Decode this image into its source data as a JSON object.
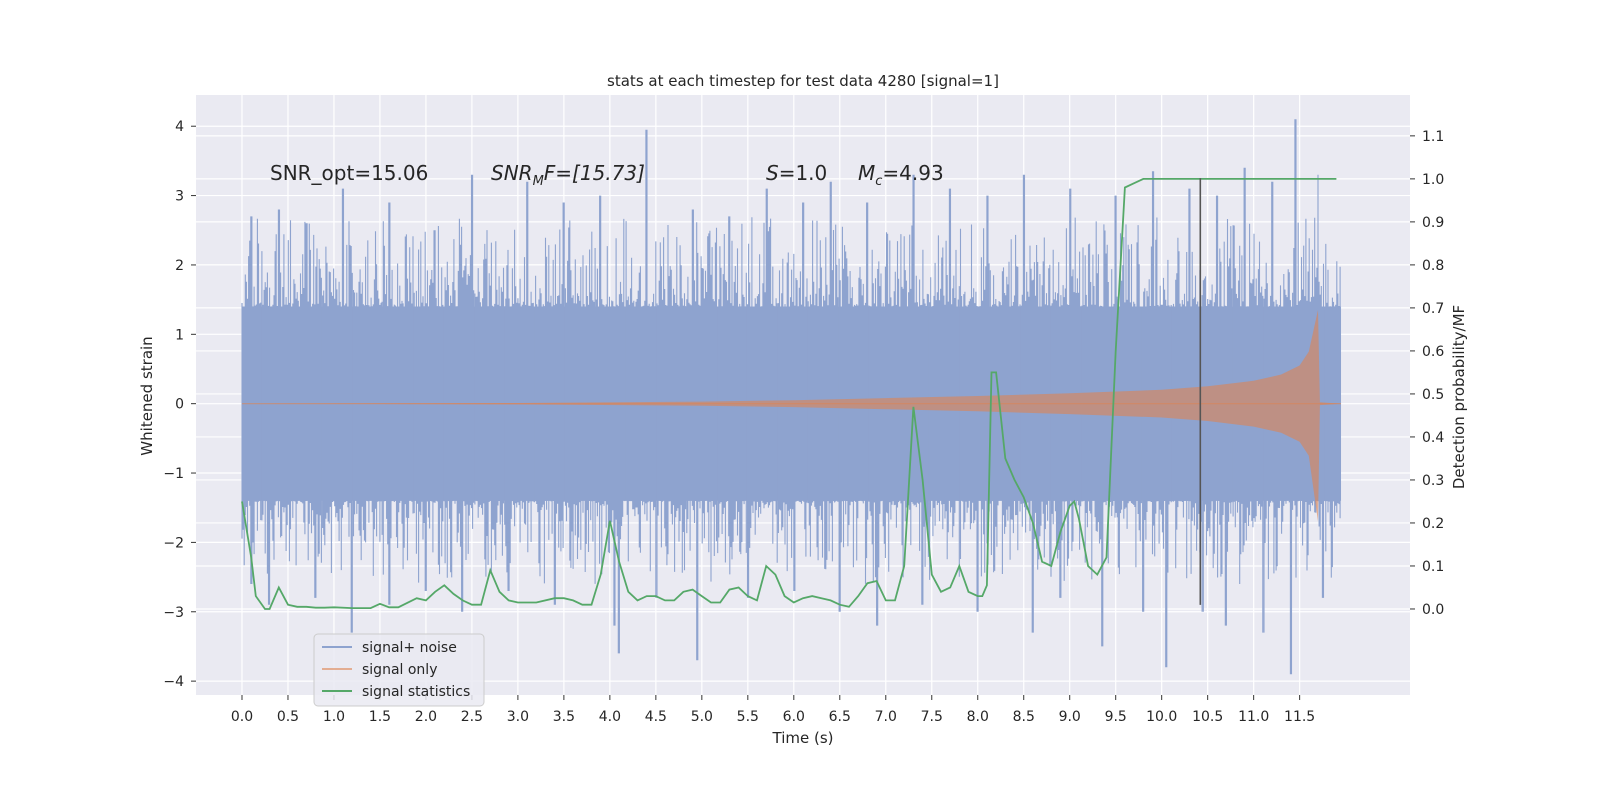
{
  "chart_data": {
    "type": "line",
    "title": "stats at each timestep for test data 4280 [signal=1]",
    "xlabel": "Time (s)",
    "ylabel_left": "Whitened strain",
    "ylabel_right": "Detection probability/MF",
    "xlim": [
      -0.5,
      12.7
    ],
    "ylim_left": [
      -4.2,
      4.45
    ],
    "ylim_right": [
      -0.2,
      1.195
    ],
    "xticks": [
      "0.0",
      "0.5",
      "1.0",
      "1.5",
      "2.0",
      "2.5",
      "3.0",
      "3.5",
      "4.0",
      "4.5",
      "5.0",
      "5.5",
      "6.0",
      "6.5",
      "7.0",
      "7.5",
      "8.0",
      "8.5",
      "9.0",
      "9.5",
      "10.0",
      "10.5",
      "11.0",
      "11.5"
    ],
    "yticks_left": [
      "4",
      "3",
      "2",
      "1",
      "0",
      "−1",
      "−2",
      "−3",
      "−4"
    ],
    "yticks_right": [
      "1.1",
      "1.0",
      "0.9",
      "0.8",
      "0.7",
      "0.6",
      "0.5",
      "0.4",
      "0.3",
      "0.2",
      "0.1",
      "0.0"
    ],
    "annotations": {
      "snr_opt": "SNR_opt=15.06",
      "snr_mf_main": "SNR",
      "snr_mf_sub": "M",
      "snr_mf_rest": "F=[15.73]",
      "s_main": "S",
      "s_rest": "=1.0",
      "mc_main": "M",
      "mc_sub": "c",
      "mc_rest": "=4.93"
    },
    "legend": {
      "position": "lower-left",
      "entries": [
        "signal+ noise",
        "signal only",
        "signal statistics"
      ]
    },
    "colors": {
      "noise": "#8ea3cf",
      "signal": "#dd8452",
      "stats": "#55a868",
      "plot_bg": "#eaeaf2",
      "grid": "#ffffff",
      "vline": "#555555"
    },
    "series": [
      {
        "name": "signal+ noise",
        "note": "dense noisy strain envelope; typical range about ±1.4, spikes reaching 4.1 and -3.8",
        "upper_baseline": 1.4,
        "lower_baseline": -1.4,
        "spikes_top": [
          [
            0.1,
            2.7
          ],
          [
            0.4,
            2.8
          ],
          [
            0.7,
            2.6
          ],
          [
            1.1,
            3.1
          ],
          [
            1.6,
            2.9
          ],
          [
            2.1,
            2.5
          ],
          [
            2.5,
            3.3
          ],
          [
            3.1,
            3.2
          ],
          [
            3.5,
            2.9
          ],
          [
            3.9,
            3.0
          ],
          [
            4.4,
            3.95
          ],
          [
            4.9,
            2.8
          ],
          [
            5.3,
            2.7
          ],
          [
            5.7,
            3.1
          ],
          [
            6.1,
            2.9
          ],
          [
            6.4,
            3.2
          ],
          [
            6.8,
            2.9
          ],
          [
            7.3,
            3.3
          ],
          [
            7.7,
            3.1
          ],
          [
            8.1,
            3.0
          ],
          [
            8.5,
            3.3
          ],
          [
            9.0,
            3.1
          ],
          [
            9.5,
            3.0
          ],
          [
            9.9,
            3.35
          ],
          [
            10.3,
            3.1
          ],
          [
            10.6,
            3.0
          ],
          [
            10.9,
            3.4
          ],
          [
            11.2,
            3.2
          ],
          [
            11.45,
            4.1
          ],
          [
            11.7,
            3.3
          ]
        ],
        "spikes_bottom": [
          [
            0.1,
            -2.6
          ],
          [
            0.3,
            -2.9
          ],
          [
            0.8,
            -2.8
          ],
          [
            1.2,
            -3.3
          ],
          [
            1.6,
            -2.9
          ],
          [
            2.0,
            -2.7
          ],
          [
            2.4,
            -3.0
          ],
          [
            2.9,
            -2.7
          ],
          [
            3.4,
            -2.9
          ],
          [
            4.05,
            -3.2
          ],
          [
            4.1,
            -3.6
          ],
          [
            4.5,
            -2.8
          ],
          [
            4.95,
            -3.7
          ],
          [
            5.5,
            -2.8
          ],
          [
            6.0,
            -2.7
          ],
          [
            6.5,
            -3.0
          ],
          [
            6.9,
            -3.2
          ],
          [
            7.4,
            -2.9
          ],
          [
            8.0,
            -3.0
          ],
          [
            8.6,
            -3.3
          ],
          [
            8.9,
            -2.8
          ],
          [
            9.35,
            -3.5
          ],
          [
            9.8,
            -3.0
          ],
          [
            10.05,
            -3.8
          ],
          [
            10.45,
            -3.0
          ],
          [
            10.7,
            -3.2
          ],
          [
            11.1,
            -3.3
          ],
          [
            11.4,
            -3.9
          ],
          [
            11.75,
            -2.8
          ]
        ]
      },
      {
        "name": "signal only",
        "note": "chirp envelope growing until merger at ~11.7 s",
        "envelope": [
          [
            0.0,
            0.0
          ],
          [
            3.0,
            0.01
          ],
          [
            5.0,
            0.03
          ],
          [
            6.0,
            0.05
          ],
          [
            7.0,
            0.08
          ],
          [
            8.0,
            0.11
          ],
          [
            9.0,
            0.15
          ],
          [
            10.0,
            0.2
          ],
          [
            10.5,
            0.25
          ],
          [
            11.0,
            0.33
          ],
          [
            11.3,
            0.42
          ],
          [
            11.5,
            0.55
          ],
          [
            11.6,
            0.75
          ],
          [
            11.7,
            1.35
          ],
          [
            11.72,
            0.02
          ],
          [
            11.95,
            0.0
          ]
        ],
        "lower_peak": -1.7
      },
      {
        "name": "signal statistics",
        "axis": "right",
        "x": [
          0.0,
          0.1,
          0.15,
          0.25,
          0.3,
          0.4,
          0.5,
          0.6,
          0.7,
          0.8,
          0.9,
          1.0,
          1.2,
          1.4,
          1.5,
          1.6,
          1.7,
          1.9,
          2.0,
          2.1,
          2.2,
          2.3,
          2.4,
          2.5,
          2.6,
          2.7,
          2.8,
          2.9,
          3.0,
          3.2,
          3.4,
          3.5,
          3.6,
          3.7,
          3.8,
          3.9,
          4.0,
          4.1,
          4.2,
          4.3,
          4.4,
          4.5,
          4.6,
          4.7,
          4.8,
          4.9,
          5.0,
          5.1,
          5.2,
          5.3,
          5.4,
          5.5,
          5.6,
          5.7,
          5.8,
          5.9,
          6.0,
          6.1,
          6.2,
          6.3,
          6.4,
          6.5,
          6.6,
          6.7,
          6.8,
          6.9,
          7.0,
          7.1,
          7.2,
          7.3,
          7.4,
          7.5,
          7.6,
          7.7,
          7.8,
          7.9,
          8.0,
          8.05,
          8.1,
          8.15,
          8.2,
          8.3,
          8.4,
          8.5,
          8.6,
          8.7,
          8.8,
          8.9,
          9.0,
          9.05,
          9.1,
          9.2,
          9.3,
          9.4,
          9.5,
          9.6,
          9.7,
          9.8,
          9.9,
          10.0,
          10.1,
          10.2,
          10.3,
          10.4,
          10.42,
          10.45,
          10.5,
          10.6,
          10.8,
          11.0,
          11.5,
          11.9
        ],
        "values": [
          0.25,
          0.12,
          0.03,
          0.0,
          0.0,
          0.05,
          0.01,
          0.005,
          0.005,
          0.003,
          0.003,
          0.004,
          0.002,
          0.002,
          0.012,
          0.004,
          0.004,
          0.025,
          0.02,
          0.04,
          0.055,
          0.035,
          0.02,
          0.01,
          0.01,
          0.09,
          0.04,
          0.02,
          0.015,
          0.015,
          0.025,
          0.025,
          0.02,
          0.01,
          0.01,
          0.08,
          0.205,
          0.11,
          0.04,
          0.02,
          0.03,
          0.03,
          0.02,
          0.02,
          0.04,
          0.045,
          0.03,
          0.015,
          0.015,
          0.045,
          0.05,
          0.03,
          0.02,
          0.1,
          0.08,
          0.03,
          0.015,
          0.025,
          0.03,
          0.025,
          0.02,
          0.01,
          0.005,
          0.03,
          0.06,
          0.065,
          0.02,
          0.02,
          0.1,
          0.47,
          0.3,
          0.08,
          0.04,
          0.05,
          0.1,
          0.04,
          0.03,
          0.03,
          0.055,
          0.55,
          0.55,
          0.35,
          0.3,
          0.26,
          0.2,
          0.11,
          0.1,
          0.18,
          0.24,
          0.25,
          0.21,
          0.1,
          0.08,
          0.12,
          0.6,
          0.98,
          0.99,
          1.0,
          1.0,
          1.0,
          1.0,
          1.0,
          1.0,
          1.0,
          1.0,
          1.0,
          1.0,
          1.0,
          1.0,
          1.0,
          1.0,
          1.0
        ]
      },
      {
        "name": "vertical marker",
        "x": 10.42,
        "range_left": [
          -2.9,
          3.25
        ]
      }
    ]
  }
}
